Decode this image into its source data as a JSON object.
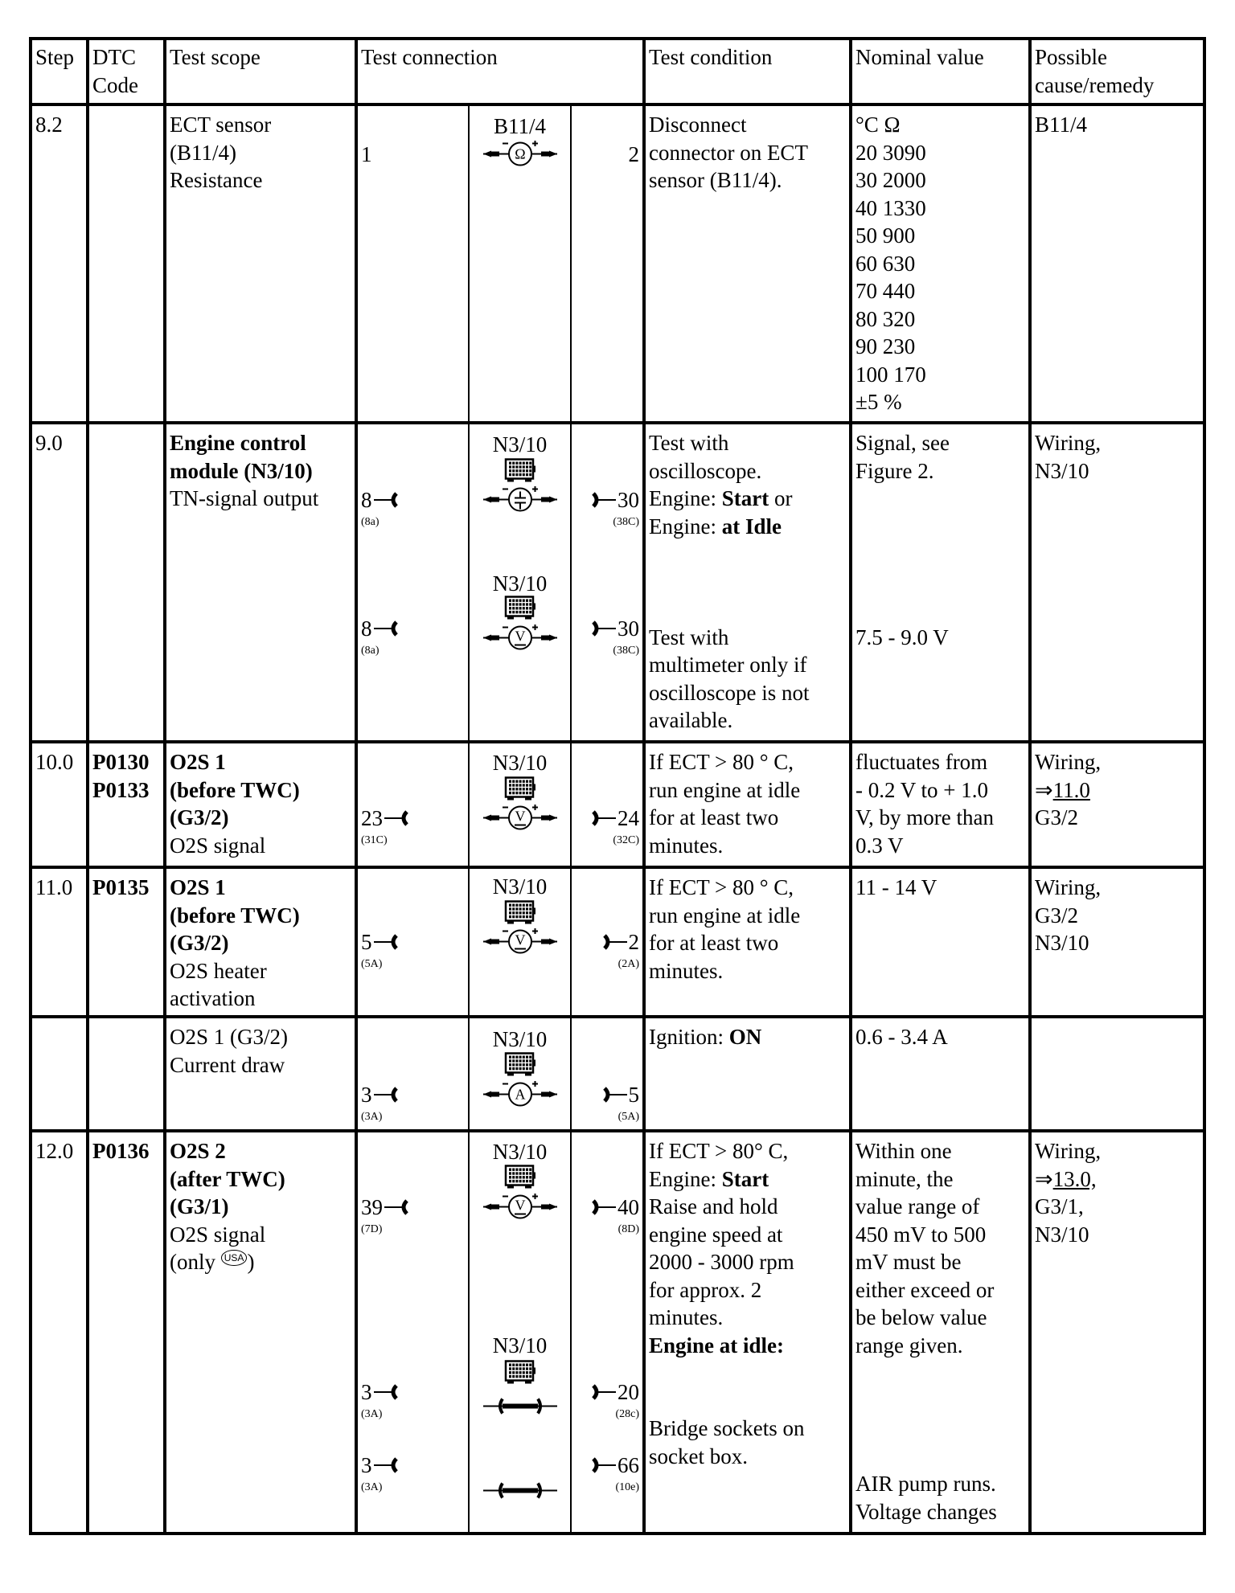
{
  "header": {
    "step": [
      "Step"
    ],
    "dtc": [
      "DTC",
      "Code"
    ],
    "scope": [
      "Test scope"
    ],
    "connection": [
      "Test connection"
    ],
    "condition": [
      "Test condition"
    ],
    "nominal": [
      "Nominal value"
    ],
    "remedy": [
      "Possible",
      "cause/remedy"
    ]
  },
  "rows": [
    {
      "step": "8.2",
      "dtc": [],
      "scope": [
        "ECT sensor",
        "(B11/4)",
        "Resistance"
      ],
      "condition": [
        "Disconnect",
        "connector on ECT",
        "sensor (B11/4)."
      ],
      "nominal": [
        "°C Ω",
        "20 3090",
        "30 2000",
        "40 1330",
        "50 900",
        "60 630",
        "70 440",
        "80 320",
        "90 230",
        "100 170",
        "±5 %"
      ],
      "remedy": [
        "B11/4"
      ],
      "connections": [
        {
          "device": "B11/4",
          "box": false,
          "meter": "ohm",
          "meter_symbol": "Ω",
          "left": "1",
          "left_sub": "",
          "right": "2",
          "right_sub": "",
          "left_socket": false,
          "right_socket": false
        }
      ]
    },
    {
      "step": "9.0",
      "dtc": [],
      "scope": [
        [
          {
            "t": "Engine control",
            "b": true
          }
        ],
        [
          {
            "t": "module (N3/10)",
            "b": true
          }
        ],
        "TN-signal output"
      ],
      "condition": [
        "Test with",
        "oscilloscope.",
        [
          {
            "t": "Engine: "
          },
          {
            "t": "Start",
            "b": true
          },
          {
            "t": " or"
          }
        ],
        [
          {
            "t": "Engine: "
          },
          {
            "t": "at Idle",
            "b": true
          }
        ],
        "",
        "",
        "",
        "Test with",
        "multimeter only if",
        "oscilloscope is not",
        "available."
      ],
      "nominal": [
        "Signal, see",
        "Figure 2.",
        "",
        "",
        "",
        "",
        "",
        "7.5 - 9.0 V"
      ],
      "remedy": [
        "Wiring,",
        "N3/10"
      ],
      "connections": [
        {
          "device": "N3/10",
          "box": true,
          "meter": "scope",
          "meter_symbol": "",
          "left": "8",
          "left_sub": "(8a)",
          "right": "30",
          "right_sub": "(38C)",
          "left_socket": true,
          "right_socket": true
        },
        {
          "device": "N3/10",
          "box": true,
          "meter": "volt",
          "meter_symbol": "V",
          "left": "8",
          "left_sub": "(8a)",
          "right": "30",
          "right_sub": "(38C)",
          "left_socket": true,
          "right_socket": true
        }
      ]
    },
    {
      "step": "10.0",
      "dtc": [
        [
          {
            "t": "P0130",
            "b": true
          }
        ],
        [
          {
            "t": "P0133",
            "b": true
          }
        ]
      ],
      "scope": [
        [
          {
            "t": "O2S 1",
            "b": true
          }
        ],
        [
          {
            "t": "(before TWC)",
            "b": true
          }
        ],
        [
          {
            "t": "(G3/2)",
            "b": true
          }
        ],
        "O2S signal"
      ],
      "condition": [
        "If ECT > 80 ° C,",
        "run engine at idle",
        "for at least two",
        "minutes."
      ],
      "nominal": [
        "fluctuates from",
        "- 0.2 V to + 1.0",
        "V, by more than",
        "0.3 V"
      ],
      "remedy": [
        "Wiring,",
        [
          {
            "t": "⇒"
          },
          {
            "t": "11.0",
            "u": true
          }
        ],
        "G3/2"
      ],
      "connections": [
        {
          "device": "N3/10",
          "box": true,
          "meter": "volt",
          "meter_symbol": "V",
          "left": "23",
          "left_sub": "(31C)",
          "right": "24",
          "right_sub": "(32C)",
          "left_socket": true,
          "right_socket": true
        }
      ]
    },
    {
      "step": "11.0",
      "dtc": [
        [
          {
            "t": "P0135",
            "b": true
          }
        ]
      ],
      "scope": [
        [
          {
            "t": "O2S 1",
            "b": true
          }
        ],
        [
          {
            "t": "(before TWC)",
            "b": true
          }
        ],
        [
          {
            "t": "(G3/2)",
            "b": true
          }
        ],
        "O2S heater",
        "activation"
      ],
      "condition": [
        "If ECT > 80 ° C,",
        "run engine at idle",
        "for at least two",
        "minutes."
      ],
      "nominal": [
        "11 - 14 V"
      ],
      "remedy": [
        "Wiring,",
        "G3/2",
        "N3/10"
      ],
      "connections": [
        {
          "device": "N3/10",
          "box": true,
          "meter": "volt",
          "meter_symbol": "V",
          "left": "5",
          "left_sub": "(5A)",
          "right": "2",
          "right_sub": "(2A)",
          "left_socket": true,
          "right_socket": true
        }
      ]
    },
    {
      "step": "",
      "dtc": [],
      "scope": [
        "O2S 1 (G3/2)",
        "Current draw"
      ],
      "condition": [
        [
          {
            "t": "Ignition: "
          },
          {
            "t": "ON",
            "b": true
          }
        ]
      ],
      "nominal": [
        "0.6 - 3.4 A"
      ],
      "remedy": [],
      "connections": [
        {
          "device": "N3/10",
          "box": true,
          "meter": "amp",
          "meter_symbol": "A",
          "left": "3",
          "left_sub": "(3A)",
          "right": "5",
          "right_sub": "(5A)",
          "left_socket": true,
          "right_socket": true
        }
      ]
    },
    {
      "step": "12.0",
      "dtc": [
        [
          {
            "t": "P0136",
            "b": true
          }
        ]
      ],
      "scope": [
        [
          {
            "t": "O2S 2",
            "b": true
          }
        ],
        [
          {
            "t": "(after TWC)",
            "b": true
          }
        ],
        [
          {
            "t": "(G3/1)",
            "b": true
          }
        ],
        "O2S signal",
        [
          {
            "t": "(only "
          },
          {
            "t": "USA",
            "icon": "usa-badge"
          },
          {
            "t": ")"
          }
        ]
      ],
      "condition": [
        "If ECT > 80° C,",
        [
          {
            "t": "Engine: "
          },
          {
            "t": "Start",
            "b": true
          }
        ],
        "Raise and hold",
        "engine speed at",
        "2000 - 3000 rpm",
        "for approx. 2",
        "minutes.",
        [
          {
            "t": "Engine at idle:",
            "b": true
          }
        ],
        "",
        "",
        "Bridge sockets on",
        "socket box."
      ],
      "nominal": [
        "Within one",
        "minute, the",
        "value range of",
        "450 mV to 500",
        "mV must be",
        "either exceed or",
        "be below value",
        "range given.",
        "",
        "",
        "",
        "",
        "AIR pump runs.",
        "Voltage changes"
      ],
      "remedy": [
        "Wiring,",
        [
          {
            "t": "⇒"
          },
          {
            "t": "13.0,",
            "u": true
          }
        ],
        "G3/1,",
        "N3/10"
      ],
      "connections": [
        {
          "device": "N3/10",
          "box": true,
          "meter": "volt",
          "meter_symbol": "V",
          "left": "39",
          "left_sub": "(7D)",
          "right": "40",
          "right_sub": "(8D)",
          "left_socket": true,
          "right_socket": true
        },
        {
          "device": "N3/10",
          "box": true,
          "meter": "bridge",
          "meter_symbol": "",
          "left": "3",
          "left_sub": "(3A)",
          "right": "20",
          "right_sub": "(28c)",
          "left_socket": true,
          "right_socket": true
        },
        {
          "device": "",
          "box": false,
          "meter": "bridge",
          "meter_symbol": "",
          "left": "3",
          "left_sub": "(3A)",
          "right": "66",
          "right_sub": "(10e)",
          "left_socket": true,
          "right_socket": true
        }
      ]
    }
  ]
}
